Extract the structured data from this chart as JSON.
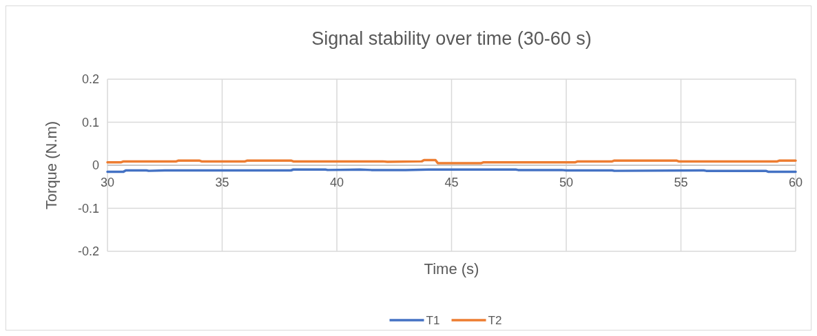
{
  "chart_data": {
    "type": "line",
    "title": "Signal stability over time (30-60 s)",
    "xlabel": "Time (s)",
    "ylabel": "Torque (N.m)",
    "xlim": [
      30,
      60
    ],
    "xticks": [
      30,
      35,
      40,
      45,
      50,
      55,
      60
    ],
    "ylim": [
      -0.2,
      0.2
    ],
    "yticks": [
      -0.2,
      -0.1,
      0,
      0.1,
      0.2
    ],
    "grid": true,
    "legend": "bottom",
    "marker": "none",
    "line_style": "solid",
    "series": [
      {
        "name": "T1",
        "color": "#4472c4",
        "x": [
          30,
          30.7,
          30.8,
          31.7,
          31.8,
          32.5,
          32.6,
          38,
          38.1,
          39.5,
          39.6,
          41,
          41.5,
          42,
          43,
          44,
          45,
          47.8,
          47.9,
          49.8,
          50,
          52,
          52.1,
          56,
          56.1,
          58.7,
          58.8,
          60
        ],
        "values": [
          -0.015,
          -0.015,
          -0.012,
          -0.012,
          -0.013,
          -0.012,
          -0.012,
          -0.012,
          -0.01,
          -0.01,
          -0.011,
          -0.01,
          -0.011,
          -0.011,
          -0.011,
          -0.01,
          -0.01,
          -0.01,
          -0.011,
          -0.011,
          -0.012,
          -0.012,
          -0.013,
          -0.012,
          -0.013,
          -0.013,
          -0.015,
          -0.015
        ]
      },
      {
        "name": "T2",
        "color": "#ed7d31",
        "x": [
          30,
          30.6,
          30.7,
          33,
          33.1,
          34,
          34.1,
          36,
          36.1,
          38,
          38.1,
          42,
          42.2,
          43.7,
          43.8,
          44.3,
          44.4,
          46.3,
          46.4,
          50.4,
          50.5,
          52,
          52.1,
          54.8,
          54.9,
          59.2,
          59.3,
          60
        ],
        "values": [
          0.007,
          0.007,
          0.009,
          0.009,
          0.011,
          0.011,
          0.009,
          0.009,
          0.011,
          0.011,
          0.009,
          0.009,
          0.008,
          0.009,
          0.012,
          0.012,
          0.005,
          0.005,
          0.007,
          0.007,
          0.009,
          0.009,
          0.011,
          0.011,
          0.009,
          0.009,
          0.011,
          0.011
        ]
      }
    ]
  }
}
